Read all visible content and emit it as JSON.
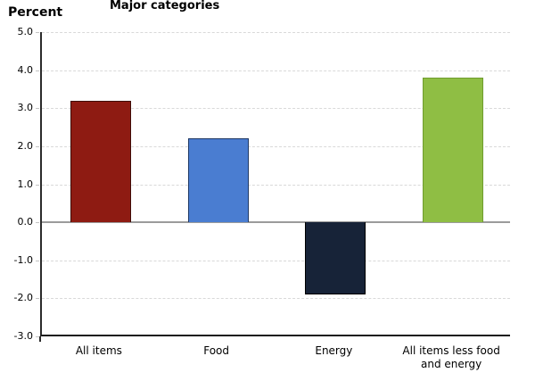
{
  "header": {
    "y_axis_title": "Percent",
    "chart_title": "Major categories"
  },
  "chart_data": {
    "type": "bar",
    "title": "Major categories",
    "ylabel": "Percent",
    "xlabel": "",
    "categories": [
      "All items",
      "Food",
      "Energy",
      "All items less food\nand energy"
    ],
    "values": [
      3.2,
      2.2,
      -1.9,
      3.8
    ],
    "ylim": [
      -3.0,
      5.0
    ],
    "ytick_step": 1.0,
    "ytick_labels": [
      "5.0",
      "4.0",
      "3.0",
      "2.0",
      "1.0",
      "0.0",
      "-1.0",
      "-2.0",
      "-3.0"
    ],
    "grid": "horizontal-dashed",
    "legend": "none",
    "bar_fill_colors": [
      "#8e1b12",
      "#4a7dd1",
      "#172338",
      "#8fbe44"
    ],
    "bar_border_colors": [
      "#3f0d08",
      "#1f3864",
      "#000000",
      "#6f9c2e"
    ],
    "gridline_color": "#d9d9d9",
    "zero_line_color": "#9b9b9b",
    "axis_color": "#1a1a1a"
  }
}
